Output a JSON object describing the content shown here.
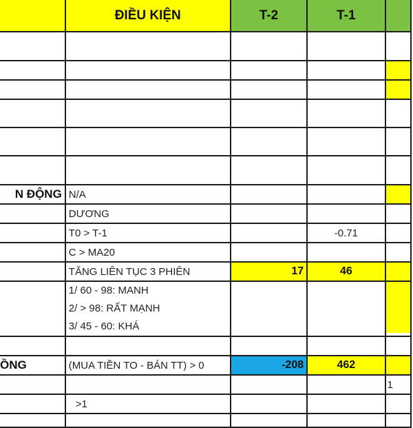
{
  "header": {
    "col_b": "ĐIỀU KIỆN",
    "col_c": "T-2",
    "col_d": "T-1",
    "col_a": "",
    "col_e": ""
  },
  "rows": {
    "r8": {
      "label": "N ĐỘNG",
      "condition": "N/A"
    },
    "r9": {
      "condition": "DƯƠNG"
    },
    "r10": {
      "condition": "T0 > T-1",
      "t1": "-0.71"
    },
    "r11": {
      "condition": "C > MA20"
    },
    "r12": {
      "condition": "TĂNG LIÊN TỤC 3 PHIÊN",
      "t2": "17",
      "t1": "46"
    },
    "r13": {
      "lines": [
        "1/ 60 - 98: MANH",
        "2/ > 98: RẤT MẠNH",
        "3/ 45 - 60: KHÁ"
      ]
    },
    "r15": {
      "label": "ỒNG",
      "condition": "(MUA TIỀN TO - BÁN TT) > 0",
      "t2": "-208",
      "t1": "462"
    },
    "r16": {
      "col_e": "1"
    },
    "r17": {
      "condition": ">1"
    }
  },
  "colors": {
    "yellow": "#ffff00",
    "green": "#7cc242",
    "blue": "#1aa6e4"
  }
}
